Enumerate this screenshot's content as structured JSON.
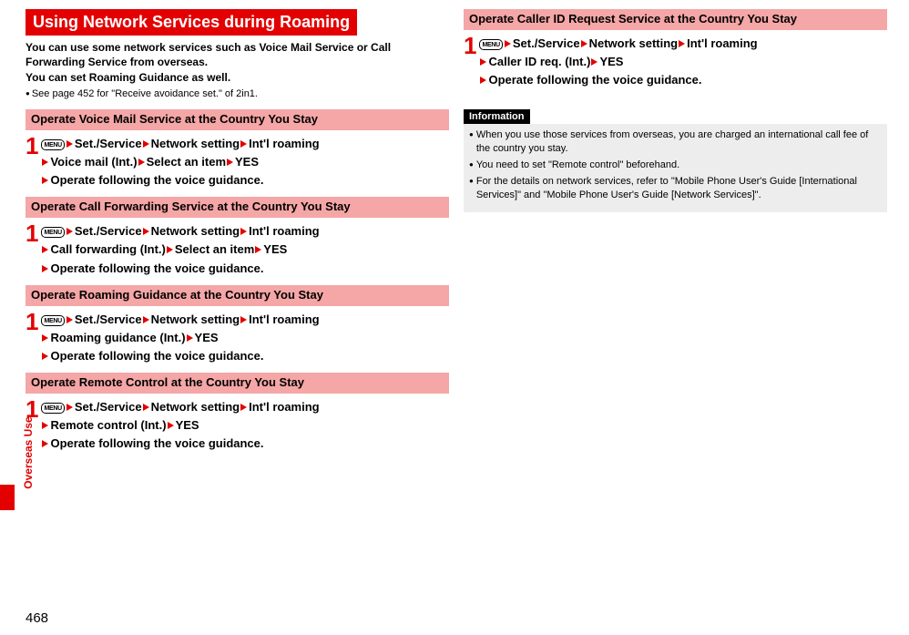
{
  "colors": {
    "accent_red": "#e30000",
    "heading_pink": "#f5a6a6",
    "info_bg": "#ededed",
    "info_header_bg": "#000000",
    "info_header_fg": "#ffffff",
    "page_bg": "#ffffff"
  },
  "side_tab": {
    "label": "Overseas Use"
  },
  "page_number": "468",
  "menu_label": "MENU",
  "main": {
    "banner": "Using Network Services during Roaming",
    "intro1": "You can use some network services such as Voice Mail Service or Call Forwarding Service from overseas.",
    "intro2": "You can set Roaming Guidance as well.",
    "note": "See page 452 for \"Receive avoidance set.\" of 2in1."
  },
  "sections": [
    {
      "heading": "Operate Voice Mail Service at the Country You Stay",
      "path": [
        "Set./Service",
        "Network setting",
        "Int'l roaming"
      ],
      "sub": [
        "Voice mail (Int.)",
        "Select an item",
        "YES"
      ],
      "final": "Operate following the voice guidance."
    },
    {
      "heading": "Operate Call Forwarding Service at the Country You Stay",
      "path": [
        "Set./Service",
        "Network setting",
        "Int'l roaming"
      ],
      "sub": [
        "Call forwarding (Int.)",
        "Select an item",
        "YES"
      ],
      "final": "Operate following the voice guidance."
    },
    {
      "heading": "Operate Roaming Guidance at the Country You Stay",
      "path": [
        "Set./Service",
        "Network setting",
        "Int'l roaming"
      ],
      "sub": [
        "Roaming guidance (Int.)",
        "YES"
      ],
      "final": "Operate following the voice guidance."
    },
    {
      "heading": "Operate Remote Control at the Country You Stay",
      "path": [
        "Set./Service",
        "Network setting",
        "Int'l roaming"
      ],
      "sub": [
        "Remote control (Int.)",
        "YES"
      ],
      "final": "Operate following the voice guidance."
    }
  ],
  "right_section": {
    "heading": "Operate Caller ID Request Service at the Country You Stay",
    "path": [
      "Set./Service",
      "Network setting",
      "Int'l roaming"
    ],
    "sub": [
      "Caller ID req. (Int.)",
      "YES"
    ],
    "final": "Operate following the voice guidance."
  },
  "information": {
    "title": "Information",
    "items": [
      "When you use those services from overseas, you are charged an international call fee of the country you stay.",
      "You need to set \"Remote control\" beforehand.",
      "For the details on network services, refer to \"Mobile Phone User's Guide [International Services]\" and \"Mobile Phone User's Guide [Network Services]\"."
    ]
  }
}
